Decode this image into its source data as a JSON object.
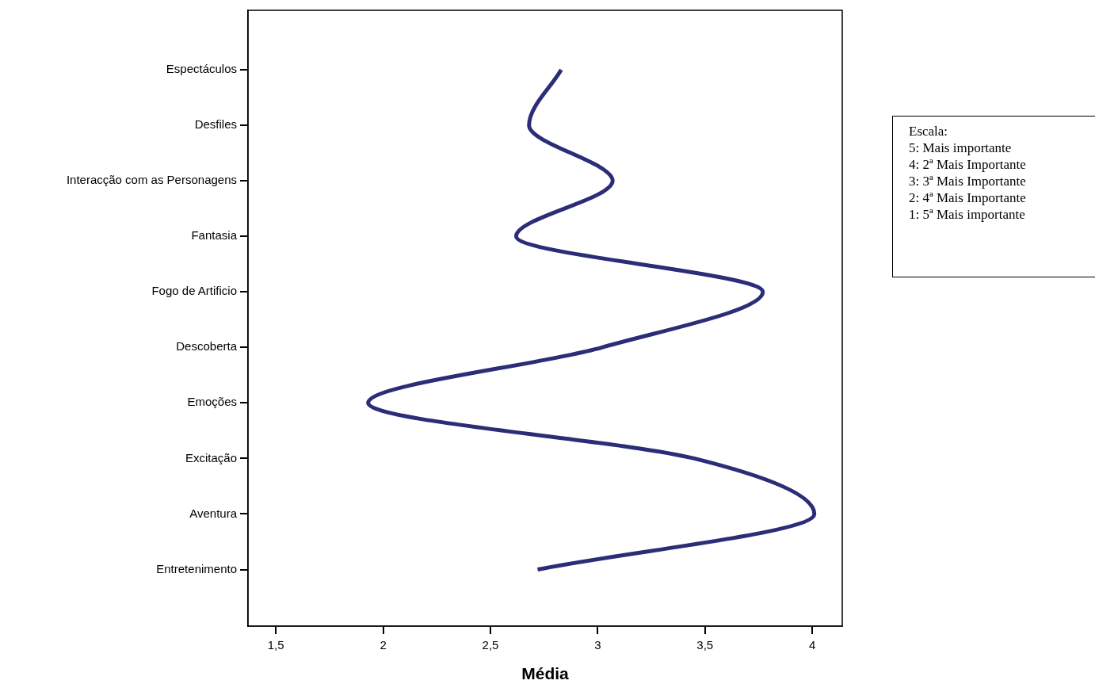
{
  "chart_data": {
    "type": "line",
    "orientation": "horizontal",
    "xlabel": "Média",
    "categories": [
      "Espectáculos",
      "Desfiles",
      "Interacção com as Personagens",
      "Fantasia",
      "Fogo de Artificio",
      "Descoberta",
      "Emoções",
      "Excitação",
      "Aventura",
      "Entretenimento"
    ],
    "series": [
      {
        "color": "#2b2d78",
        "values": [
          2.83,
          2.68,
          3.07,
          2.62,
          3.77,
          3.02,
          1.93,
          3.45,
          4.01,
          2.72
        ]
      }
    ],
    "xlim": [
      1.37,
      4.14
    ],
    "xticks": [
      {
        "value": 1.5,
        "label": "1,5"
      },
      2,
      {
        "value": 2.5,
        "label": "2,5"
      },
      3,
      {
        "value": 3.5,
        "label": "3,5"
      },
      4
    ],
    "marker": "none",
    "grid": false,
    "legend": false,
    "annotations": [
      "Escala:",
      "5: Mais importante",
      "4: 2ª Mais Importante",
      "3: 3ª Mais Importante",
      "2: 4ª Mais Importante",
      "1: 5ª Mais importante"
    ]
  }
}
